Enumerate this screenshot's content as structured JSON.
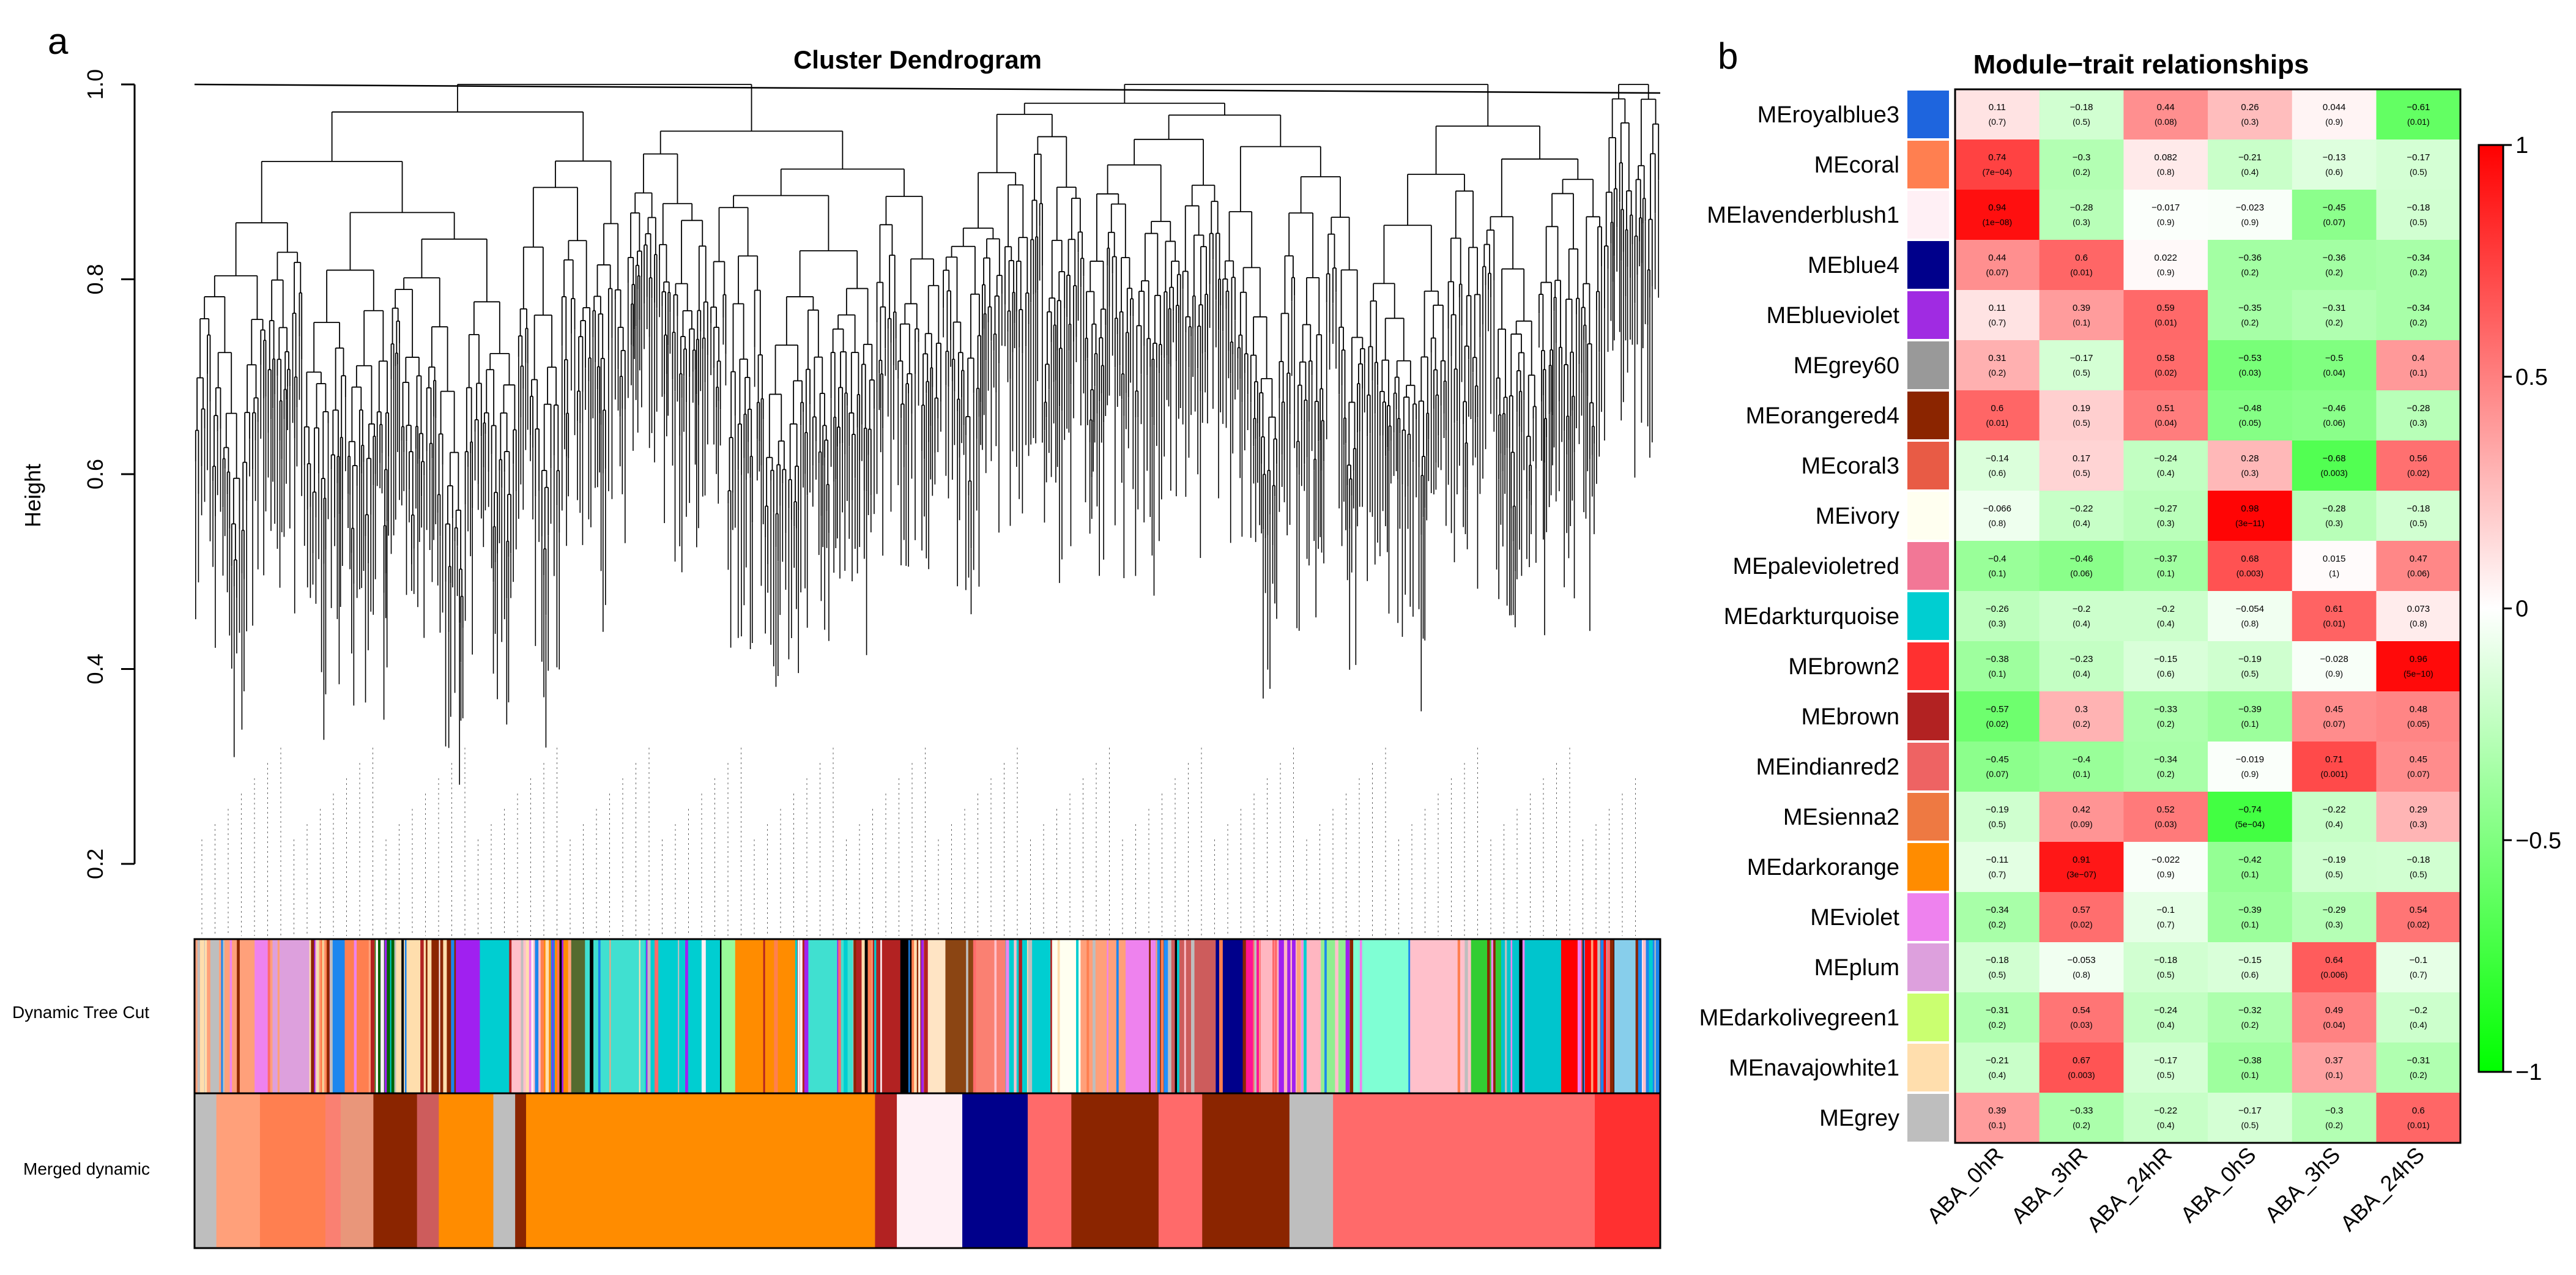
{
  "panel_a": {
    "label": "a",
    "chart_data": {
      "type": "dendrogram",
      "title": "Cluster Dendrogram",
      "ylabel": "Height",
      "ylim": [
        0.2,
        1.0
      ],
      "y_ticks": [
        {
          "value": 0.2,
          "label": "0.2"
        },
        {
          "value": 0.4,
          "label": "0.4"
        },
        {
          "value": 0.6,
          "label": "0.6"
        },
        {
          "value": 0.8,
          "label": "0.8"
        },
        {
          "value": 1.0,
          "label": "1.0"
        }
      ],
      "color_bar_labels": [
        "Dynamic Tree Cut",
        "Merged dynamic"
      ],
      "merged_modules": [
        {
          "color": "#BEBEBE",
          "w": 1.0
        },
        {
          "color": "#FFA07A",
          "w": 2.0
        },
        {
          "color": "#FF7F50",
          "w": 3.0
        },
        {
          "color": "#FA8072",
          "w": 0.7
        },
        {
          "color": "#E9967A",
          "w": 1.5
        },
        {
          "color": "#8B2500",
          "w": 2.0
        },
        {
          "color": "#CD5C5C",
          "w": 1.0
        },
        {
          "color": "#FF8C00",
          "w": 2.5
        },
        {
          "color": "#BEBEBE",
          "w": 1.0
        },
        {
          "color": "#8B2500",
          "w": 0.5
        },
        {
          "color": "#FF8C00",
          "w": 16.0
        },
        {
          "color": "#B22222",
          "w": 1.0
        },
        {
          "color": "#FFF0F5",
          "w": 3.0
        },
        {
          "color": "#00008B",
          "w": 3.0
        },
        {
          "color": "#FF6A6A",
          "w": 2.0
        },
        {
          "color": "#8B2500",
          "w": 4.0
        },
        {
          "color": "#FF6A6A",
          "w": 2.0
        },
        {
          "color": "#8B2500",
          "w": 4.0
        },
        {
          "color": "#BEBEBE",
          "w": 2.0
        },
        {
          "color": "#FF6A6A",
          "w": 12.0
        },
        {
          "color": "#FF3030",
          "w": 3.0
        }
      ],
      "dynamic_modules": [
        {
          "color": "#BEBEBE",
          "w": 1.0
        },
        {
          "color": "#FFA07A",
          "w": 1.0
        },
        {
          "color": "#EE82EE",
          "w": 0.5
        },
        {
          "color": "#DDA0DD",
          "w": 1.5
        },
        {
          "color": "#EEE8AA",
          "w": 0.5
        },
        {
          "color": "#1C86EE",
          "w": 0.5
        },
        {
          "color": "#FF7F50",
          "w": 1.0
        },
        {
          "color": "#006400",
          "w": 0.7
        },
        {
          "color": "#FFDEAD",
          "w": 1.0
        },
        {
          "color": "#8B2500",
          "w": 1.0
        },
        {
          "color": "#A020F0",
          "w": 0.8
        },
        {
          "color": "#00CED1",
          "w": 1.0
        },
        {
          "color": "#FFC0CB",
          "w": 1.0
        },
        {
          "color": "#FF8C00",
          "w": 1.0
        },
        {
          "color": "#556B2F",
          "w": 0.5
        },
        {
          "color": "#40E0D0",
          "w": 2.0
        },
        {
          "color": "#00CED1",
          "w": 2.5
        },
        {
          "color": "#98FB98",
          "w": 0.5
        },
        {
          "color": "#FF8C00",
          "w": 2.0
        },
        {
          "color": "#40E0D0",
          "w": 2.0
        },
        {
          "color": "#B22222",
          "w": 1.5
        },
        {
          "color": "#000000",
          "w": 0.5
        },
        {
          "color": "#FFE4C4",
          "w": 1.0
        },
        {
          "color": "#8B4513",
          "w": 1.0
        },
        {
          "color": "#FA8072",
          "w": 1.0
        },
        {
          "color": "#00CED1",
          "w": 1.5
        },
        {
          "color": "#FFFFF0",
          "w": 1.0
        },
        {
          "color": "#FFA07A",
          "w": 1.5
        },
        {
          "color": "#EE82EE",
          "w": 1.0
        },
        {
          "color": "#1E90FF",
          "w": 0.5
        },
        {
          "color": "#CD5C5C",
          "w": 1.5
        },
        {
          "color": "#00008B",
          "w": 1.0
        },
        {
          "color": "#FF1493",
          "w": 0.5
        },
        {
          "color": "#FFB6C1",
          "w": 2.0
        },
        {
          "color": "#90EE90",
          "w": 1.0
        },
        {
          "color": "#7FFFD4",
          "w": 2.0
        },
        {
          "color": "#FFC0CB",
          "w": 2.0
        },
        {
          "color": "#32CD32",
          "w": 1.0
        },
        {
          "color": "#00C5CD",
          "w": 2.0
        },
        {
          "color": "#FF0000",
          "w": 1.5
        },
        {
          "color": "#87CEEB",
          "w": 1.0
        },
        {
          "color": "#1C86EE",
          "w": 0.8
        }
      ]
    }
  },
  "panel_b": {
    "label": "b",
    "chart_data": {
      "type": "heatmap",
      "title": "Module−trait relationships",
      "columns": [
        "ABA_0hR",
        "ABA_3hR",
        "ABA_24hR",
        "ABA_0hS",
        "ABA_3hS",
        "ABA_24hS"
      ],
      "rows": [
        {
          "name": "MEroyalblue3",
          "color": "#1E65DE",
          "values": [
            "0.11",
            "−0.18",
            "0.44",
            "0.26",
            "0.044",
            "−0.61"
          ],
          "pvalues": [
            "(0.7)",
            "(0.5)",
            "(0.08)",
            "(0.3)",
            "(0.9)",
            "(0.01)"
          ]
        },
        {
          "name": "MEcoral",
          "color": "#FF7F50",
          "values": [
            "0.74",
            "−0.3",
            "0.082",
            "−0.21",
            "−0.13",
            "−0.17"
          ],
          "pvalues": [
            "(7e−04)",
            "(0.2)",
            "(0.8)",
            "(0.4)",
            "(0.6)",
            "(0.5)"
          ]
        },
        {
          "name": "MElavenderblush1",
          "color": "#FFF0F5",
          "values": [
            "0.94",
            "−0.28",
            "−0.017",
            "−0.023",
            "−0.45",
            "−0.18"
          ],
          "pvalues": [
            "(1e−08)",
            "(0.3)",
            "(0.9)",
            "(0.9)",
            "(0.07)",
            "(0.5)"
          ]
        },
        {
          "name": "MEblue4",
          "color": "#00008B",
          "values": [
            "0.44",
            "0.6",
            "0.022",
            "−0.36",
            "−0.36",
            "−0.34"
          ],
          "pvalues": [
            "(0.07)",
            "(0.01)",
            "(0.9)",
            "(0.2)",
            "(0.2)",
            "(0.2)"
          ]
        },
        {
          "name": "MEblueviolet",
          "color": "#A02BE2",
          "values": [
            "0.11",
            "0.39",
            "0.59",
            "−0.35",
            "−0.31",
            "−0.34"
          ],
          "pvalues": [
            "(0.7)",
            "(0.1)",
            "(0.01)",
            "(0.2)",
            "(0.2)",
            "(0.2)"
          ]
        },
        {
          "name": "MEgrey60",
          "color": "#999999",
          "values": [
            "0.31",
            "−0.17",
            "0.58",
            "−0.53",
            "−0.5",
            "0.4"
          ],
          "pvalues": [
            "(0.2)",
            "(0.5)",
            "(0.02)",
            "(0.03)",
            "(0.04)",
            "(0.1)"
          ]
        },
        {
          "name": "MEorangered4",
          "color": "#8B2500",
          "values": [
            "0.6",
            "0.19",
            "0.51",
            "−0.48",
            "−0.46",
            "−0.28"
          ],
          "pvalues": [
            "(0.01)",
            "(0.5)",
            "(0.04)",
            "(0.05)",
            "(0.06)",
            "(0.3)"
          ]
        },
        {
          "name": "MEcoral3",
          "color": "#E85B45",
          "values": [
            "−0.14",
            "0.17",
            "−0.24",
            "0.28",
            "−0.68",
            "0.56"
          ],
          "pvalues": [
            "(0.6)",
            "(0.5)",
            "(0.4)",
            "(0.3)",
            "(0.003)",
            "(0.02)"
          ]
        },
        {
          "name": "MEivory",
          "color": "#FFFFF0",
          "values": [
            "−0.066",
            "−0.22",
            "−0.27",
            "0.98",
            "−0.28",
            "−0.18"
          ],
          "pvalues": [
            "(0.8)",
            "(0.4)",
            "(0.3)",
            "(3e−11)",
            "(0.3)",
            "(0.5)"
          ]
        },
        {
          "name": "MEpalevioletred",
          "color": "#F27796",
          "values": [
            "−0.4",
            "−0.46",
            "−0.37",
            "0.68",
            "0.015",
            "0.47"
          ],
          "pvalues": [
            "(0.1)",
            "(0.06)",
            "(0.1)",
            "(0.003)",
            "(1)",
            "(0.06)"
          ]
        },
        {
          "name": "MEdarkturquoise",
          "color": "#00CED1",
          "values": [
            "−0.26",
            "−0.2",
            "−0.2",
            "−0.054",
            "0.61",
            "0.073"
          ],
          "pvalues": [
            "(0.3)",
            "(0.4)",
            "(0.4)",
            "(0.8)",
            "(0.01)",
            "(0.8)"
          ]
        },
        {
          "name": "MEbrown2",
          "color": "#FF3030",
          "values": [
            "−0.38",
            "−0.23",
            "−0.15",
            "−0.19",
            "−0.028",
            "0.96"
          ],
          "pvalues": [
            "(0.1)",
            "(0.4)",
            "(0.6)",
            "(0.5)",
            "(0.9)",
            "(5e−10)"
          ]
        },
        {
          "name": "MEbrown",
          "color": "#B22222",
          "values": [
            "−0.57",
            "0.3",
            "−0.33",
            "−0.39",
            "0.45",
            "0.48"
          ],
          "pvalues": [
            "(0.02)",
            "(0.2)",
            "(0.2)",
            "(0.1)",
            "(0.07)",
            "(0.05)"
          ]
        },
        {
          "name": "MEindianred2",
          "color": "#EE6363",
          "values": [
            "−0.45",
            "−0.4",
            "−0.34",
            "−0.019",
            "0.71",
            "0.45"
          ],
          "pvalues": [
            "(0.07)",
            "(0.1)",
            "(0.2)",
            "(0.9)",
            "(0.001)",
            "(0.07)"
          ]
        },
        {
          "name": "MEsienna2",
          "color": "#EE7942",
          "values": [
            "−0.19",
            "0.42",
            "0.52",
            "−0.74",
            "−0.22",
            "0.29"
          ],
          "pvalues": [
            "(0.5)",
            "(0.09)",
            "(0.03)",
            "(5e−04)",
            "(0.4)",
            "(0.3)"
          ]
        },
        {
          "name": "MEdarkorange",
          "color": "#FF8C00",
          "values": [
            "−0.11",
            "0.91",
            "−0.022",
            "−0.42",
            "−0.19",
            "−0.18"
          ],
          "pvalues": [
            "(0.7)",
            "(3e−07)",
            "(0.9)",
            "(0.1)",
            "(0.5)",
            "(0.5)"
          ]
        },
        {
          "name": "MEviolet",
          "color": "#EE82EE",
          "values": [
            "−0.34",
            "0.57",
            "−0.1",
            "−0.39",
            "−0.29",
            "0.54"
          ],
          "pvalues": [
            "(0.2)",
            "(0.02)",
            "(0.7)",
            "(0.1)",
            "(0.3)",
            "(0.02)"
          ]
        },
        {
          "name": "MEplum",
          "color": "#DDA0DD",
          "values": [
            "−0.18",
            "−0.053",
            "−0.18",
            "−0.15",
            "0.64",
            "−0.1"
          ],
          "pvalues": [
            "(0.5)",
            "(0.8)",
            "(0.5)",
            "(0.6)",
            "(0.006)",
            "(0.7)"
          ]
        },
        {
          "name": "MEdarkolivegreen1",
          "color": "#CAFF70",
          "values": [
            "−0.31",
            "0.54",
            "−0.24",
            "−0.32",
            "0.49",
            "−0.2"
          ],
          "pvalues": [
            "(0.2)",
            "(0.03)",
            "(0.4)",
            "(0.2)",
            "(0.04)",
            "(0.4)"
          ]
        },
        {
          "name": "MEnavajowhite1",
          "color": "#FFDEAD",
          "values": [
            "−0.21",
            "0.67",
            "−0.17",
            "−0.38",
            "0.37",
            "−0.31"
          ],
          "pvalues": [
            "(0.4)",
            "(0.003)",
            "(0.5)",
            "(0.1)",
            "(0.1)",
            "(0.2)"
          ]
        },
        {
          "name": "MEgrey",
          "color": "#BEBEBE",
          "values": [
            "0.39",
            "−0.33",
            "−0.22",
            "−0.17",
            "−0.3",
            "0.6"
          ],
          "pvalues": [
            "(0.1)",
            "(0.2)",
            "(0.4)",
            "(0.5)",
            "(0.2)",
            "(0.01)"
          ]
        }
      ],
      "legend": {
        "range": [
          -1,
          1
        ],
        "ticks": [
          "1",
          "0.5",
          "0",
          "−0.5",
          "−1"
        ],
        "colors": {
          "low": "#00FF00",
          "mid": "#FFFFFF",
          "high": "#FF0000"
        }
      }
    }
  }
}
